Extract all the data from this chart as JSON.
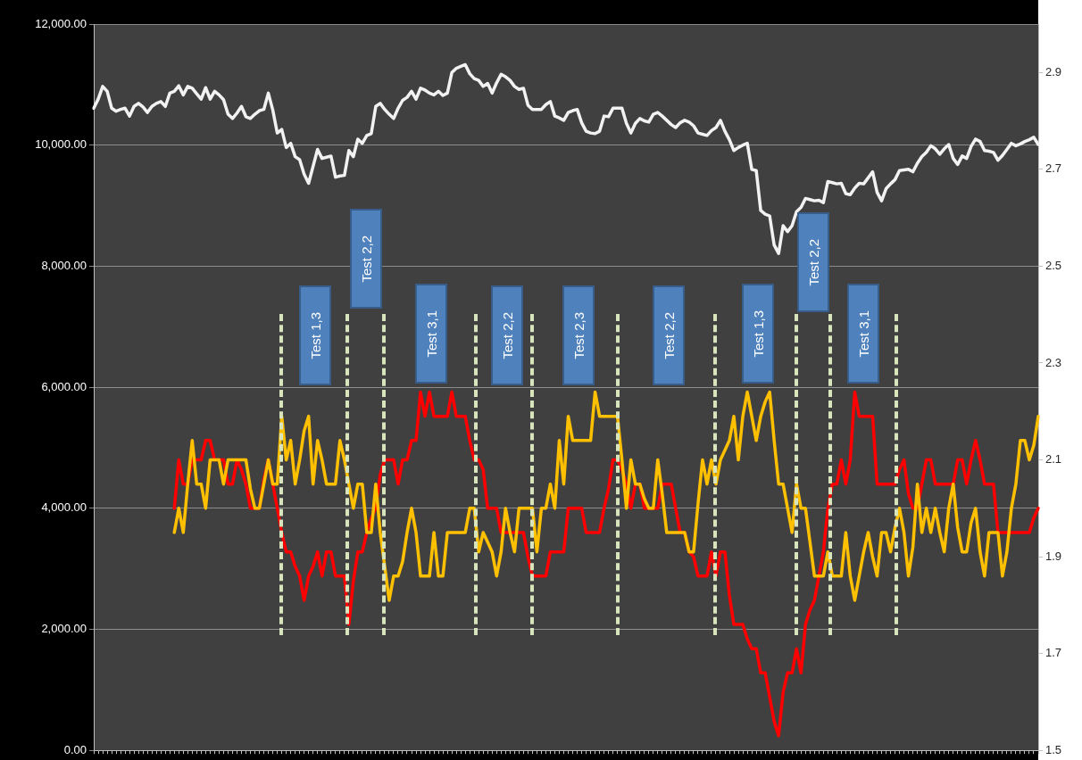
{
  "chart_data": {
    "type": "line",
    "categories": [
      null,
      null,
      null,
      null,
      null,
      null,
      null,
      null,
      null,
      null,
      null,
      null,
      null,
      null,
      null,
      null,
      null,
      null,
      null,
      null,
      null,
      null,
      null,
      null,
      null,
      null,
      null,
      null,
      null,
      null,
      null,
      null,
      null,
      null,
      null,
      null,
      null,
      null,
      null,
      null,
      null,
      null,
      null,
      null,
      null,
      null,
      null,
      null,
      null,
      null,
      null,
      null,
      null,
      null,
      null,
      null,
      null,
      null,
      null,
      null,
      null,
      null,
      null,
      null,
      null,
      null,
      null,
      null,
      null,
      null,
      null,
      null,
      null,
      null,
      null,
      null,
      null,
      null,
      null,
      null,
      null,
      null,
      null,
      null,
      null,
      null,
      null,
      null,
      null,
      null,
      null,
      null,
      null,
      null,
      null,
      null,
      null,
      null,
      null,
      null,
      null,
      null,
      null,
      null,
      null,
      null,
      null,
      null,
      null,
      null,
      null,
      null,
      null,
      null,
      null,
      null,
      null,
      null,
      null,
      null,
      null,
      null,
      null,
      null,
      null,
      null,
      null,
      null,
      null,
      null,
      null,
      null,
      null,
      null,
      null,
      null,
      null,
      null,
      null,
      null,
      null,
      null,
      null,
      null,
      null,
      null,
      null,
      null,
      null,
      null,
      null,
      null,
      null,
      null,
      null,
      null,
      null,
      null,
      null,
      null,
      null,
      null,
      null,
      null,
      null,
      null,
      null,
      null,
      null,
      null,
      null,
      null,
      null,
      null,
      null,
      null,
      null,
      null,
      null,
      null,
      null,
      null,
      null,
      null,
      null,
      null,
      null,
      null,
      null,
      null,
      null,
      null,
      null,
      null,
      null,
      null,
      null,
      null,
      null,
      null,
      null,
      null,
      null,
      null,
      null,
      null,
      null,
      null,
      null,
      null,
      null,
      null
    ],
    "ylim": [
      0,
      12000
    ],
    "yticks": [
      {
        "value": 0,
        "label": "0.00"
      },
      {
        "value": 2000,
        "label": "2,000.00"
      },
      {
        "value": 4000,
        "label": "4,000.00"
      },
      {
        "value": 6000,
        "label": "6,000.00"
      },
      {
        "value": 8000,
        "label": "8,000.00"
      },
      {
        "value": 10000,
        "label": "10,000.00"
      },
      {
        "value": 12000,
        "label": "12,000.00"
      }
    ],
    "y2lim": [
      1.5,
      3.0
    ],
    "y2ticks": [
      1.5,
      1.7,
      1.9,
      2.1,
      2.3,
      2.5,
      2.7,
      2.9
    ],
    "grid": "y",
    "legend": false,
    "marker": "none",
    "series": [
      {
        "color": "#f2f2f2",
        "values": [
          10610,
          10760,
          10970,
          10890,
          10610,
          10560,
          10590,
          10610,
          10480,
          10640,
          10690,
          10630,
          10540,
          10640,
          10690,
          10720,
          10640,
          10860,
          10890,
          10980,
          10830,
          10970,
          10940,
          10850,
          10760,
          10950,
          10760,
          10890,
          10830,
          10750,
          10510,
          10440,
          10530,
          10640,
          10470,
          10440,
          10510,
          10570,
          10590,
          10860,
          10580,
          10200,
          10260,
          9960,
          10030,
          9810,
          9760,
          9520,
          9370,
          9650,
          9930,
          9780,
          9800,
          9820,
          9470,
          9490,
          9500,
          9910,
          9810,
          10100,
          10030,
          10160,
          10190,
          10640,
          10690,
          10590,
          10510,
          10440,
          10610,
          10740,
          10790,
          10890,
          10760,
          10940,
          10910,
          10860,
          10830,
          10890,
          10820,
          10860,
          11200,
          11270,
          11300,
          11330,
          11180,
          11100,
          11070,
          10970,
          11020,
          10860,
          11030,
          11170,
          11130,
          11070,
          10970,
          10920,
          10940,
          10660,
          10590,
          10590,
          10590,
          10670,
          10720,
          10480,
          10450,
          10410,
          10540,
          10570,
          10590,
          10370,
          10230,
          10200,
          10190,
          10230,
          10480,
          10470,
          10610,
          10610,
          10610,
          10360,
          10200,
          10360,
          10440,
          10400,
          10380,
          10510,
          10540,
          10480,
          10410,
          10340,
          10290,
          10370,
          10410,
          10380,
          10320,
          10200,
          10180,
          10160,
          10240,
          10290,
          10410,
          10230,
          10090,
          9910,
          9960,
          10000,
          10030,
          9600,
          9580,
          8920,
          8860,
          8830,
          8350,
          8210,
          8670,
          8570,
          8670,
          8900,
          8970,
          9120,
          9100,
          9080,
          9090,
          9050,
          9400,
          9380,
          9360,
          9370,
          9200,
          9180,
          9290,
          9370,
          9360,
          9460,
          9560,
          9220,
          9080,
          9280,
          9360,
          9430,
          9580,
          9590,
          9600,
          9560,
          9700,
          9810,
          9880,
          9990,
          9940,
          9850,
          9940,
          10010,
          9780,
          9680,
          9820,
          9780,
          9980,
          10100,
          10060,
          9910,
          9900,
          9880,
          9750,
          9830,
          9930,
          10030,
          9990,
          10020,
          10060,
          10090,
          10130,
          10010
        ]
      },
      {
        "color": "#ff0000",
        "axis": "y2",
        "values": [
          null,
          null,
          null,
          null,
          null,
          null,
          null,
          null,
          null,
          null,
          null,
          null,
          null,
          null,
          null,
          null,
          null,
          null,
          2.0,
          2.1,
          2.05,
          2.05,
          2.1,
          2.1,
          2.1,
          2.14,
          2.14,
          2.1,
          2.1,
          2.1,
          2.05,
          2.05,
          2.1,
          2.08,
          2.05,
          2.0,
          2.0,
          2.0,
          2.06,
          2.1,
          2.05,
          2.0,
          1.95,
          1.91,
          1.91,
          1.88,
          1.86,
          1.81,
          1.86,
          1.88,
          1.91,
          1.86,
          1.91,
          1.91,
          1.86,
          1.86,
          1.86,
          1.76,
          1.85,
          1.91,
          1.91,
          1.95,
          1.98,
          2.0,
          2.07,
          2.1,
          2.1,
          2.1,
          2.05,
          2.1,
          2.1,
          2.14,
          2.14,
          2.24,
          2.19,
          2.24,
          2.19,
          2.19,
          2.19,
          2.19,
          2.24,
          2.19,
          2.19,
          2.19,
          2.14,
          2.1,
          2.1,
          2.08,
          2.0,
          2.0,
          2.0,
          1.95,
          1.95,
          1.95,
          1.95,
          1.95,
          1.95,
          1.9,
          1.86,
          1.86,
          1.86,
          1.86,
          1.91,
          1.91,
          1.91,
          1.91,
          2.0,
          2.0,
          2.0,
          2.0,
          1.95,
          1.95,
          1.95,
          1.95,
          2.0,
          2.04,
          2.1,
          2.1,
          2.08,
          2.05,
          2.0,
          2.05,
          2.05,
          2.0,
          2.0,
          2.0,
          2.0,
          2.05,
          2.05,
          2.05,
          2.0,
          1.95,
          1.95,
          1.91,
          1.9,
          1.86,
          1.86,
          1.86,
          1.91,
          1.86,
          1.91,
          1.91,
          1.82,
          1.76,
          1.76,
          1.76,
          1.73,
          1.71,
          1.71,
          1.66,
          1.66,
          1.61,
          1.56,
          1.53,
          1.62,
          1.66,
          1.66,
          1.71,
          1.66,
          1.76,
          1.79,
          1.81,
          1.86,
          1.91,
          2.0,
          2.05,
          2.05,
          2.1,
          2.05,
          2.1,
          2.24,
          2.19,
          2.19,
          2.19,
          2.19,
          2.05,
          2.05,
          2.05,
          2.05,
          2.05,
          2.08,
          2.1,
          2.03,
          2.0,
          2.0,
          2.05,
          2.1,
          2.1,
          2.05,
          2.05,
          2.05,
          2.05,
          2.05,
          2.1,
          2.1,
          2.05,
          2.1,
          2.14,
          2.1,
          2.05,
          2.05,
          2.05,
          1.95,
          1.95,
          1.95,
          1.95,
          1.95,
          1.95,
          1.95,
          1.95,
          1.98,
          2.0
        ]
      },
      {
        "color": "#ffc000",
        "axis": "y2",
        "values": [
          null,
          null,
          null,
          null,
          null,
          null,
          null,
          null,
          null,
          null,
          null,
          null,
          null,
          null,
          null,
          null,
          null,
          null,
          1.95,
          2.0,
          1.95,
          2.05,
          2.14,
          2.05,
          2.05,
          2.0,
          2.1,
          2.1,
          2.1,
          2.05,
          2.1,
          2.1,
          2.1,
          2.1,
          2.1,
          2.04,
          2.0,
          2.0,
          2.05,
          2.1,
          2.05,
          2.05,
          2.19,
          2.1,
          2.14,
          2.05,
          2.1,
          2.16,
          2.19,
          2.05,
          2.14,
          2.1,
          2.05,
          2.05,
          2.05,
          2.14,
          2.1,
          2.05,
          2.0,
          2.05,
          2.05,
          1.95,
          1.95,
          2.05,
          1.95,
          1.88,
          1.81,
          1.86,
          1.86,
          1.89,
          1.95,
          2.0,
          1.95,
          1.86,
          1.86,
          1.86,
          1.95,
          1.86,
          1.86,
          1.95,
          1.95,
          1.95,
          1.95,
          1.95,
          2.0,
          2.0,
          1.91,
          1.95,
          1.93,
          1.91,
          1.86,
          1.91,
          2.0,
          1.95,
          1.91,
          2.0,
          2.0,
          2.0,
          2.0,
          1.91,
          2.0,
          2.0,
          2.05,
          2.0,
          2.14,
          2.05,
          2.19,
          2.14,
          2.14,
          2.14,
          2.14,
          2.14,
          2.24,
          2.19,
          2.19,
          2.19,
          2.19,
          2.19,
          2.1,
          2.0,
          2.1,
          2.05,
          2.05,
          2.02,
          2.0,
          2.0,
          2.1,
          2.03,
          1.95,
          1.95,
          1.95,
          1.95,
          1.95,
          1.91,
          1.91,
          2.01,
          2.1,
          2.05,
          2.1,
          2.05,
          2.1,
          2.12,
          2.14,
          2.19,
          2.1,
          2.19,
          2.24,
          2.19,
          2.14,
          2.19,
          2.22,
          2.24,
          2.14,
          2.05,
          2.05,
          2.0,
          1.95,
          2.05,
          2.0,
          2.0,
          1.93,
          1.86,
          1.86,
          1.86,
          1.91,
          1.86,
          1.86,
          1.86,
          1.95,
          1.86,
          1.81,
          1.86,
          1.91,
          1.95,
          1.9,
          1.86,
          1.95,
          1.95,
          1.91,
          1.96,
          2.0,
          1.95,
          1.86,
          1.92,
          2.05,
          1.95,
          2.0,
          1.95,
          2.0,
          1.95,
          1.91,
          2.0,
          2.05,
          1.96,
          1.91,
          1.91,
          1.97,
          2.0,
          1.91,
          1.86,
          1.95,
          1.95,
          1.95,
          1.86,
          1.91,
          2.0,
          2.05,
          2.14,
          2.14,
          2.1,
          2.13,
          2.19
        ]
      }
    ],
    "annotations": [
      "Test 1,3",
      "Test 2,2",
      "Test 3,1",
      "Test 2,2",
      "Test 2,3",
      "Test 2,2",
      "Test 1,3",
      "Test 2,2",
      "Test 3,1"
    ]
  }
}
